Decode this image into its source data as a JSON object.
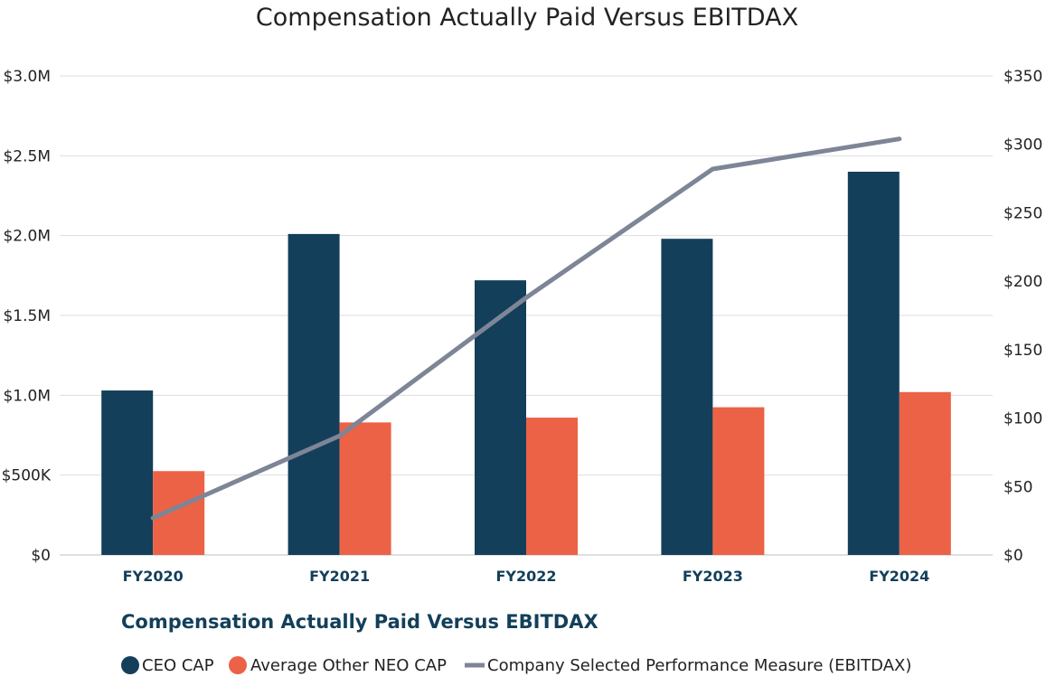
{
  "chart_data": {
    "type": "bar",
    "title": "Compensation Actually Paid Versus EBITDAX",
    "subtitle": "Compensation Actually Paid Versus EBITDAX",
    "categories": [
      "FY2020",
      "FY2021",
      "FY2022",
      "FY2023",
      "FY2024"
    ],
    "y_left": {
      "ticks": [
        0,
        500000,
        1000000,
        1500000,
        2000000,
        2500000,
        3000000
      ],
      "tick_labels": [
        "$0",
        "$500K",
        "$1.0M",
        "$1.5M",
        "$2.0M",
        "$2.5M",
        "$3.0M"
      ],
      "ylim": [
        0,
        3000000
      ]
    },
    "y_right": {
      "ticks": [
        0,
        50,
        100,
        150,
        200,
        250,
        300,
        350
      ],
      "tick_labels": [
        "$0",
        "$50",
        "$100",
        "$150",
        "$200",
        "$250",
        "$300",
        "$350"
      ],
      "ylim": [
        0,
        350
      ]
    },
    "grid": true,
    "legend_placement": "bottom",
    "series": [
      {
        "name": "CEO CAP",
        "kind": "bar",
        "axis": "left",
        "color": "#133f5a",
        "values": [
          1030000,
          2010000,
          1720000,
          1980000,
          2400000
        ]
      },
      {
        "name": "Average Other NEO CAP",
        "kind": "bar",
        "axis": "left",
        "color": "#ec6246",
        "values": [
          525000,
          830000,
          860000,
          925000,
          1020000
        ]
      },
      {
        "name": "Company Selected Performance Measure (EBITDAX)",
        "kind": "line",
        "axis": "right",
        "color": "#7d8597",
        "values": [
          27,
          87,
          188,
          282,
          304
        ]
      }
    ]
  }
}
